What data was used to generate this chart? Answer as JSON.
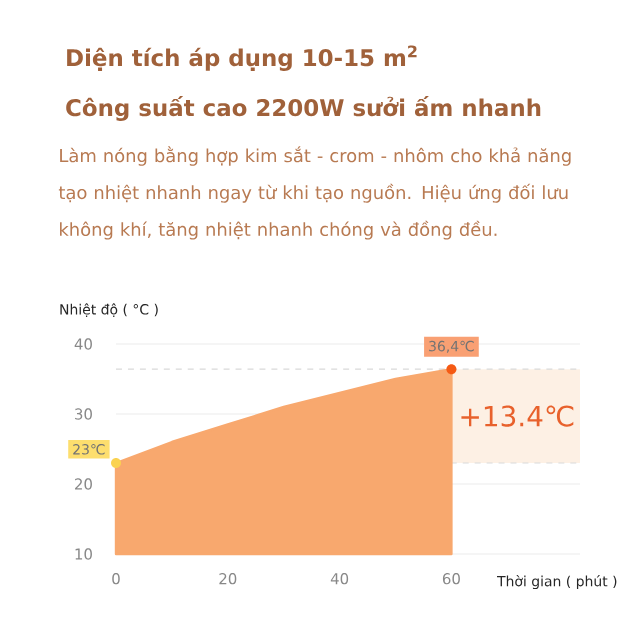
{
  "chart_data": {
    "type": "area",
    "title": "Diện tích áp dụng 10-15 m$^{2}$",
    "subtitle": "Công suất cao 2200W sưởi ấm nhanh",
    "xlabel": "Thời gian ( phút )",
    "ylabel": "Nhiệt độ ( °C )",
    "x": [
      0,
      10,
      20,
      30,
      40,
      50,
      60
    ],
    "series": [
      {
        "color": "#f8a86e",
        "values": [
          23,
          26,
          28.5,
          31,
          33,
          35,
          36.4
        ]
      }
    ],
    "xlim": [
      0,
      83
    ],
    "ylim": [
      10,
      40
    ],
    "xticks": [
      0,
      20,
      40,
      60
    ],
    "yticks": [
      10,
      20,
      30,
      40
    ],
    "grid": "y",
    "ref_lines": [
      {
        "axis": "y",
        "value": 23,
        "color": "#d9d9d9",
        "line_style": "dashed"
      },
      {
        "axis": "y",
        "value": 36.4,
        "color": "#d9d9d9",
        "line_style": "dashed"
      }
    ],
    "bands": [
      {
        "axis": "y",
        "from": 23,
        "to": 36.4,
        "label": "+13.4℃",
        "color": "#fdf0e4"
      }
    ],
    "annotations": [
      "Làm nóng bằng hợp kim sắt - crom - nhôm cho khả năng tạo nhiệt nhanh ngay từ khi tạo nguồn. Hiệu ứng đối lưu không khí, tăng nhiệt nhanh chóng và đồng đều.",
      {
        "text": "23℃",
        "x": 0,
        "y": 23
      },
      {
        "text": "36,4℃",
        "x": 60,
        "y": 36.4
      }
    ]
  }
}
